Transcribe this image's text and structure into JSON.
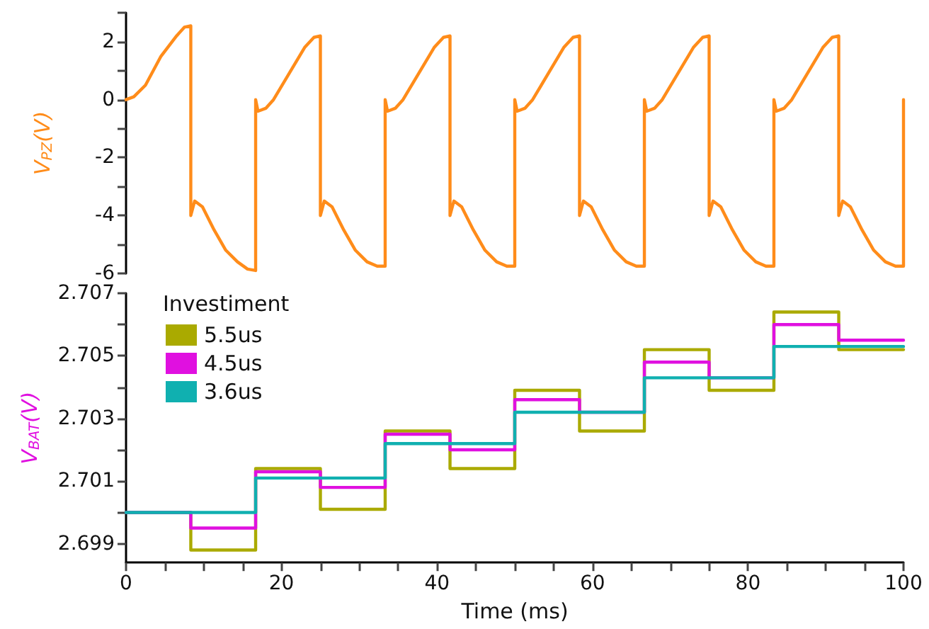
{
  "chart_data": [
    {
      "type": "line",
      "ylabel": "V$_{PZ}$(V)",
      "xlim": [
        0,
        100
      ],
      "ylim": [
        -6,
        3
      ],
      "yticks": [
        -6,
        {
          "value": -5,
          "label": null
        },
        -4,
        {
          "value": -3,
          "label": null
        },
        -2,
        {
          "value": -1,
          "label": null
        },
        0,
        {
          "value": 1,
          "label": null
        },
        2,
        {
          "value": 3,
          "label": null
        }
      ],
      "tick_labels": "y",
      "grid": false,
      "legend": false,
      "series": [
        {
          "color": "#ff8c1a",
          "x": [
            0,
            1,
            2.5,
            4.5,
            6.5,
            7.5,
            8.33,
            8.33,
            8.83,
            9.83,
            11.33,
            12.83,
            14.33,
            15.63,
            16.67,
            16.67,
            16.97,
            17.97,
            18.97,
            20.97,
            22.97,
            24.17,
            25,
            25,
            25.5,
            26.5,
            28,
            29.5,
            31,
            32.3,
            33.33,
            33.33,
            33.63,
            34.63,
            35.63,
            37.63,
            39.63,
            40.83,
            41.67,
            41.67,
            42.17,
            43.17,
            44.67,
            46.17,
            47.67,
            48.97,
            50,
            50,
            50.3,
            51.3,
            52.3,
            54.3,
            56.3,
            57.5,
            58.33,
            58.33,
            58.83,
            59.83,
            61.33,
            62.83,
            64.33,
            65.63,
            66.67,
            66.67,
            66.97,
            67.97,
            68.97,
            70.97,
            72.97,
            74.17,
            75,
            75,
            75.5,
            76.5,
            78,
            79.5,
            81,
            82.3,
            83.33,
            83.33,
            83.63,
            84.63,
            85.63,
            87.63,
            89.63,
            90.83,
            91.67,
            91.67,
            92.17,
            93.17,
            94.67,
            96.17,
            97.67,
            98.97,
            100,
            100
          ],
          "values": [
            0,
            0.1,
            0.5,
            1.5,
            2.2,
            2.5,
            2.55,
            -4.0,
            -3.5,
            -3.7,
            -4.5,
            -5.2,
            -5.6,
            -5.85,
            -5.9,
            0,
            -0.4,
            -0.3,
            0,
            0.9,
            1.8,
            2.15,
            2.2,
            -4.0,
            -3.5,
            -3.7,
            -4.5,
            -5.2,
            -5.6,
            -5.75,
            -5.75,
            0,
            -0.4,
            -0.3,
            0,
            0.9,
            1.8,
            2.15,
            2.2,
            -4.0,
            -3.5,
            -3.7,
            -4.5,
            -5.2,
            -5.6,
            -5.75,
            -5.75,
            0,
            -0.4,
            -0.3,
            0,
            0.9,
            1.8,
            2.15,
            2.2,
            -4.0,
            -3.5,
            -3.7,
            -4.5,
            -5.2,
            -5.6,
            -5.75,
            -5.75,
            0,
            -0.4,
            -0.3,
            0,
            0.9,
            1.8,
            2.15,
            2.2,
            -4.0,
            -3.5,
            -3.7,
            -4.5,
            -5.2,
            -5.6,
            -5.75,
            -5.75,
            0,
            -0.4,
            -0.3,
            0,
            0.9,
            1.8,
            2.15,
            2.2,
            -4.0,
            -3.5,
            -3.7,
            -4.5,
            -5.2,
            -5.6,
            -5.75,
            -5.75,
            0
          ]
        }
      ]
    },
    {
      "type": "step",
      "ylabel": "V$_{BAT}$(V)",
      "xlabel": "Time (ms)",
      "legend_title": "Investiment",
      "legend": "top left",
      "grid": false,
      "xlim": [
        0,
        100
      ],
      "xticks": [
        0,
        {
          "value": 5,
          "label": null
        },
        {
          "value": 10,
          "label": null
        },
        {
          "value": 15,
          "label": null
        },
        20,
        {
          "value": 25,
          "label": null
        },
        {
          "value": 30,
          "label": null
        },
        {
          "value": 35,
          "label": null
        },
        40,
        {
          "value": 45,
          "label": null
        },
        {
          "value": 50,
          "label": null
        },
        {
          "value": 55,
          "label": null
        },
        60,
        {
          "value": 65,
          "label": null
        },
        {
          "value": 70,
          "label": null
        },
        {
          "value": 75,
          "label": null
        },
        80,
        {
          "value": 85,
          "label": null
        },
        {
          "value": 90,
          "label": null
        },
        {
          "value": 95,
          "label": null
        },
        100
      ],
      "ylim": [
        2.6984,
        2.707
      ],
      "yticks": [
        2.699,
        {
          "value": 2.7,
          "label": null
        },
        2.701,
        {
          "value": 2.702,
          "label": null
        },
        2.703,
        {
          "value": 2.704,
          "label": null
        },
        2.705,
        {
          "value": 2.706,
          "label": null
        },
        2.707
      ],
      "x": [
        0,
        8.33,
        16.67,
        25,
        33.33,
        41.67,
        50,
        58.33,
        66.67,
        75,
        83.33,
        91.67,
        100
      ],
      "series": [
        {
          "name": "5.5us",
          "color": "#aaaa00",
          "values": [
            2.7,
            2.6988,
            2.7014,
            2.7001,
            2.7026,
            2.7014,
            2.7039,
            2.7026,
            2.7052,
            2.7039,
            2.7064,
            2.7052,
            2.7052
          ]
        },
        {
          "name": "4.5us",
          "color": "#e010e0",
          "values": [
            2.7,
            2.6995,
            2.7013,
            2.7008,
            2.7025,
            2.702,
            2.7036,
            2.7032,
            2.7048,
            2.7043,
            2.706,
            2.7055,
            2.7055
          ]
        },
        {
          "name": "3.6us",
          "color": "#10b0b0",
          "values": [
            2.7,
            2.7,
            2.7011,
            2.7011,
            2.7022,
            2.7022,
            2.7032,
            2.7032,
            2.7043,
            2.7043,
            2.7053,
            2.7053,
            2.7053
          ]
        }
      ]
    }
  ]
}
